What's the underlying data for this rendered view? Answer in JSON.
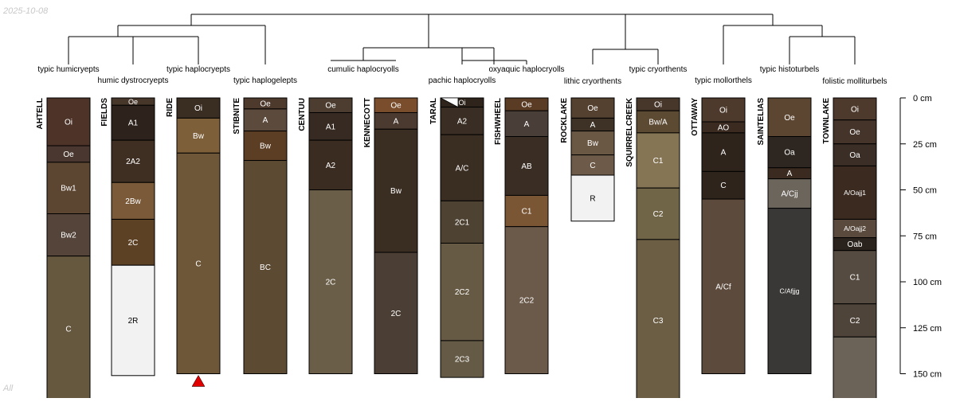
{
  "date_stamp": "2025-10-08",
  "corner_label": "All",
  "depth_axis": {
    "max_cm": 150,
    "ticks": [
      {
        "value": 0,
        "label": "0 cm"
      },
      {
        "value": 25,
        "label": "25 cm"
      },
      {
        "value": 50,
        "label": "50 cm"
      },
      {
        "value": 75,
        "label": "75 cm"
      },
      {
        "value": 100,
        "label": "100 cm"
      },
      {
        "value": 125,
        "label": "125 cm"
      },
      {
        "value": 150,
        "label": "150 cm"
      }
    ]
  },
  "taxa": [
    {
      "label": "typic humicryepts"
    },
    {
      "label": "humic dystrocryepts"
    },
    {
      "label": "typic haplocryepts"
    },
    {
      "label": "typic haplogelepts"
    },
    {
      "label": "cumulic haplocryolls"
    },
    {
      "label": "pachic haplocryolls"
    },
    {
      "label": "oxyaquic haplocryolls"
    },
    {
      "label": "lithic cryorthents"
    },
    {
      "label": "typic cryorthents"
    },
    {
      "label": "typic mollorthels"
    },
    {
      "label": "typic histoturbels"
    },
    {
      "label": "folistic molliturbels"
    }
  ],
  "profiles": [
    {
      "name": "AHTELL",
      "horizons": [
        {
          "name": "Oi",
          "top": 0,
          "bottom": 26,
          "color": "#4e3428"
        },
        {
          "name": "Oe",
          "top": 26,
          "bottom": 35,
          "color": "#4a3830"
        },
        {
          "name": "Bw1",
          "top": 35,
          "bottom": 63,
          "color": "#5c4632"
        },
        {
          "name": "Bw2",
          "top": 63,
          "bottom": 86,
          "color": "#54443a"
        },
        {
          "name": "C",
          "top": 86,
          "bottom": 165,
          "color": "#66573f"
        }
      ]
    },
    {
      "name": "FIELDS",
      "horizons": [
        {
          "name": "Oe",
          "top": 0,
          "bottom": 4,
          "color": "#47372b"
        },
        {
          "name": "A1",
          "top": 4,
          "bottom": 23,
          "color": "#2e231c"
        },
        {
          "name": "2A2",
          "top": 23,
          "bottom": 46,
          "color": "#3f2f22"
        },
        {
          "name": "2Bw",
          "top": 46,
          "bottom": 66,
          "color": "#7a5a38"
        },
        {
          "name": "2C",
          "top": 66,
          "bottom": 91,
          "color": "#5c4124"
        },
        {
          "name": "2R",
          "top": 91,
          "bottom": 151,
          "color": "#f2f2f2",
          "light": true
        }
      ]
    },
    {
      "name": "RIDE",
      "horizons": [
        {
          "name": "Oi",
          "top": 0,
          "bottom": 11,
          "color": "#3a2d22"
        },
        {
          "name": "Bw",
          "top": 11,
          "bottom": 30,
          "color": "#7d5f3a"
        },
        {
          "name": "C",
          "top": 30,
          "bottom": 150,
          "color": "#6e5738"
        }
      ],
      "truncated": true
    },
    {
      "name": "STIBNITE",
      "horizons": [
        {
          "name": "Oe",
          "top": 0,
          "bottom": 6,
          "color": "#4d3a2c"
        },
        {
          "name": "A",
          "top": 6,
          "bottom": 18,
          "color": "#5c4a3c"
        },
        {
          "name": "Bw",
          "top": 18,
          "bottom": 34,
          "color": "#5c3e24"
        },
        {
          "name": "BC",
          "top": 34,
          "bottom": 150,
          "color": "#5c4a32"
        }
      ]
    },
    {
      "name": "CENTUU",
      "horizons": [
        {
          "name": "Oe",
          "top": 0,
          "bottom": 8,
          "color": "#4c3d30"
        },
        {
          "name": "A1",
          "top": 8,
          "bottom": 23,
          "color": "#362a22"
        },
        {
          "name": "A2",
          "top": 23,
          "bottom": 50,
          "color": "#3b2c22"
        },
        {
          "name": "2C",
          "top": 50,
          "bottom": 150,
          "color": "#6b5e48"
        }
      ]
    },
    {
      "name": "KENNECOTT",
      "horizons": [
        {
          "name": "Oe",
          "top": 0,
          "bottom": 8,
          "color": "#7a4e2c"
        },
        {
          "name": "A",
          "top": 8,
          "bottom": 17,
          "color": "#4a3a30"
        },
        {
          "name": "Bw",
          "top": 17,
          "bottom": 84,
          "color": "#3a2d22"
        },
        {
          "name": "2C",
          "top": 84,
          "bottom": 150,
          "color": "#4b3f35"
        }
      ]
    },
    {
      "name": "TARAL",
      "horizons": [
        {
          "name": "Oi",
          "top": 0,
          "bottom": 5,
          "color": "#2e241c",
          "has_triangle": true
        },
        {
          "name": "A2",
          "top": 5,
          "bottom": 20,
          "color": "#3a2e24"
        },
        {
          "name": "A/C",
          "top": 20,
          "bottom": 56,
          "color": "#3a2d22"
        },
        {
          "name": "2C1",
          "top": 56,
          "bottom": 79,
          "color": "#4e4232"
        },
        {
          "name": "2C2",
          "top": 79,
          "bottom": 132,
          "color": "#665a44"
        },
        {
          "name": "2C3",
          "top": 132,
          "bottom": 152,
          "color": "#655a46"
        }
      ]
    },
    {
      "name": "FISHWHEEL",
      "horizons": [
        {
          "name": "Oe",
          "top": 0,
          "bottom": 7,
          "color": "#5a3c24"
        },
        {
          "name": "A",
          "top": 7,
          "bottom": 21,
          "color": "#4a3e38"
        },
        {
          "name": "AB",
          "top": 21,
          "bottom": 53,
          "color": "#3a2e24"
        },
        {
          "name": "C1",
          "top": 53,
          "bottom": 70,
          "color": "#7a5634"
        },
        {
          "name": "2C2",
          "top": 70,
          "bottom": 150,
          "color": "#6b5a4a"
        }
      ]
    },
    {
      "name": "ROCKLAKE",
      "horizons": [
        {
          "name": "Oe",
          "top": 0,
          "bottom": 11,
          "color": "#55412f"
        },
        {
          "name": "A",
          "top": 11,
          "bottom": 18,
          "color": "#3e3226"
        },
        {
          "name": "Bw",
          "top": 18,
          "bottom": 31,
          "color": "#6b5844"
        },
        {
          "name": "C",
          "top": 31,
          "bottom": 42,
          "color": "#6e5a48"
        },
        {
          "name": "R",
          "top": 42,
          "bottom": 67,
          "color": "#f2f2f2",
          "light": true
        }
      ]
    },
    {
      "name": "SQUIRRELCREEK",
      "horizons": [
        {
          "name": "Oi",
          "top": 0,
          "bottom": 7,
          "color": "#47372b"
        },
        {
          "name": "Bw/A",
          "top": 7,
          "bottom": 19,
          "color": "#5c4a32"
        },
        {
          "name": "C1",
          "top": 19,
          "bottom": 49,
          "color": "#857555"
        },
        {
          "name": "C2",
          "top": 49,
          "bottom": 77,
          "color": "#716548"
        },
        {
          "name": "C3",
          "top": 77,
          "bottom": 165,
          "color": "#6b5e44"
        }
      ]
    },
    {
      "name": "OTTAWAY",
      "horizons": [
        {
          "name": "Oi",
          "top": 0,
          "bottom": 13,
          "color": "#4e3a2c"
        },
        {
          "name": "AO",
          "top": 13,
          "bottom": 19,
          "color": "#3a2a20"
        },
        {
          "name": "A",
          "top": 19,
          "bottom": 40,
          "color": "#2e241c"
        },
        {
          "name": "C",
          "top": 40,
          "bottom": 55,
          "color": "#2e241c"
        },
        {
          "name": "A/Cf",
          "top": 55,
          "bottom": 150,
          "color": "#5c4a3c"
        }
      ]
    },
    {
      "name": "SAINTELIAS",
      "horizons": [
        {
          "name": "Oe",
          "top": 0,
          "bottom": 21,
          "color": "#5c4632"
        },
        {
          "name": "Oa",
          "top": 21,
          "bottom": 38,
          "color": "#2e2620"
        },
        {
          "name": "A",
          "top": 38,
          "bottom": 44,
          "color": "#3a2a20"
        },
        {
          "name": "A/Cjj",
          "top": 44,
          "bottom": 60,
          "color": "#6b655c"
        },
        {
          "name": "C/Afjjg",
          "top": 60,
          "bottom": 150,
          "color": "#3a3836"
        }
      ]
    },
    {
      "name": "TOWNLAKE",
      "horizons": [
        {
          "name": "Oi",
          "top": 0,
          "bottom": 12,
          "color": "#4e3a2c"
        },
        {
          "name": "Oe",
          "top": 12,
          "bottom": 25,
          "color": "#44342a"
        },
        {
          "name": "Oa",
          "top": 25,
          "bottom": 37,
          "color": "#3a2e26"
        },
        {
          "name": "A/Oajj1",
          "top": 37,
          "bottom": 66,
          "color": "#3a2a20"
        },
        {
          "name": "A/Oajj2",
          "top": 66,
          "bottom": 76,
          "color": "#5a4a3e"
        },
        {
          "name": "Oab",
          "top": 76,
          "bottom": 83,
          "color": "#2a221c"
        },
        {
          "name": "C1",
          "top": 83,
          "bottom": 112,
          "color": "#554b40"
        },
        {
          "name": "C2",
          "top": 112,
          "bottom": 130,
          "color": "#4e443a"
        },
        {
          "name": "",
          "top": 130,
          "bottom": 165,
          "color": "#6b6258"
        }
      ]
    }
  ]
}
